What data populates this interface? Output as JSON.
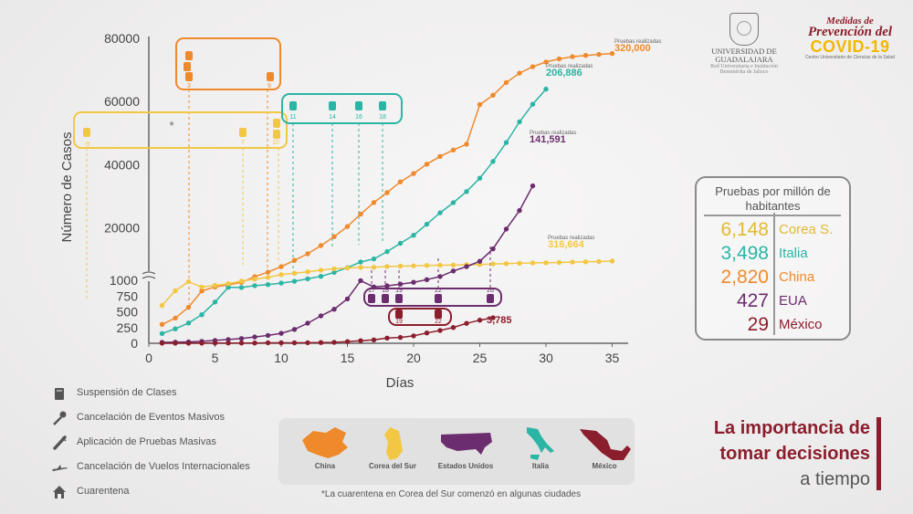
{
  "chart_data": {
    "type": "line",
    "xlabel": "Días",
    "ylabel": "Número de Casos",
    "xlim": [
      0,
      35
    ],
    "x_ticks": [
      "0",
      "5",
      "10",
      "15",
      "20",
      "25",
      "30",
      "35"
    ],
    "y_ticks_upper": [
      "20000",
      "40000",
      "60000",
      "80000"
    ],
    "y_ticks_lower": [
      "0",
      "250",
      "500",
      "750",
      "1000"
    ],
    "y_scale": "broken: 0–1000 linear lower panel, ~6000–80000 linear upper panel",
    "grid": false,
    "series": [
      {
        "name": "China",
        "color": "#ee8a2c",
        "label": "320,000",
        "sublabel": "Pruebas realizadas",
        "x": [
          1,
          2,
          3,
          4,
          5,
          6,
          7,
          8,
          9,
          10,
          11,
          12,
          13,
          14,
          15,
          16,
          17,
          18,
          19,
          20,
          21,
          22,
          23,
          24,
          25,
          26,
          27,
          28,
          29,
          30,
          31,
          32,
          33,
          34,
          35
        ],
        "y": [
          300,
          400,
          571,
          830,
          1287,
          1975,
          2744,
          4515,
          5974,
          7711,
          9692,
          11791,
          14380,
          17205,
          20438,
          24324,
          28018,
          31161,
          34546,
          37198,
          40171,
          42638,
          44653,
          46472,
          59000,
          62000,
          66000,
          69000,
          71000,
          72500,
          73500,
          74200,
          74600,
          74900,
          75200
        ]
      },
      {
        "name": "Italia",
        "color": "#2bb5a4",
        "label": "206,886",
        "sublabel": "Pruebas realizadas",
        "x": [
          1,
          2,
          3,
          4,
          5,
          6,
          7,
          8,
          9,
          10,
          11,
          12,
          13,
          14,
          15,
          16,
          17,
          18,
          19,
          20,
          21,
          22,
          23,
          24,
          25,
          26,
          27,
          28,
          29,
          30
        ],
        "y": [
          155,
          229,
          322,
          453,
          655,
          888,
          1128,
          1694,
          2036,
          2502,
          3089,
          3858,
          4636,
          5883,
          7375,
          9172,
          10149,
          12462,
          15113,
          17660,
          21157,
          24747,
          27980,
          31506,
          35713,
          41035,
          47021,
          53578,
          59138,
          63927
        ]
      },
      {
        "name": "Corea del Sur",
        "color": "#f2c744",
        "label": "316,664",
        "sublabel": "Pruebas realizadas",
        "x": [
          1,
          2,
          3,
          4,
          5,
          6,
          7,
          8,
          9,
          10,
          11,
          12,
          13,
          14,
          15,
          16,
          17,
          18,
          19,
          20,
          21,
          22,
          23,
          24,
          25,
          26,
          27,
          28,
          29,
          30,
          31,
          32,
          33,
          34,
          35
        ],
        "y": [
          602,
          833,
          977,
          1261,
          1766,
          2337,
          3150,
          3736,
          4335,
          5186,
          5621,
          6088,
          6593,
          7041,
          7313,
          7478,
          7513,
          7755,
          7869,
          7979,
          8086,
          8162,
          8236,
          8320,
          8413,
          8565,
          8652,
          8799,
          8897,
          8961,
          9037,
          9137,
          9241,
          9332,
          9478
        ]
      },
      {
        "name": "EUA",
        "color": "#6b2d6e",
        "label": "141,591",
        "sublabel": "Pruebas realizadas",
        "x": [
          1,
          2,
          3,
          4,
          5,
          6,
          7,
          8,
          9,
          10,
          11,
          12,
          13,
          14,
          15,
          16,
          17,
          18,
          19,
          20,
          21,
          22,
          23,
          24,
          25,
          26,
          27,
          28,
          29
        ],
        "y": [
          15,
          18,
          22,
          30,
          45,
          60,
          75,
          100,
          124,
          158,
          221,
          319,
          435,
          541,
          704,
          994,
          1301,
          1630,
          2183,
          2770,
          3613,
          4596,
          6344,
          7738,
          9415,
          13355,
          19608,
          25489,
          33276
        ]
      },
      {
        "name": "México",
        "color": "#8b1e2d",
        "label": "3,785",
        "sublabel": "",
        "x": [
          1,
          2,
          3,
          4,
          5,
          6,
          7,
          8,
          9,
          10,
          11,
          12,
          13,
          14,
          15,
          16,
          17,
          18,
          19,
          20,
          21,
          22,
          23,
          24,
          25,
          26
        ],
        "y": [
          1,
          1,
          2,
          3,
          4,
          4,
          5,
          5,
          7,
          7,
          7,
          8,
          12,
          15,
          26,
          41,
          53,
          82,
          93,
          118,
          164,
          203,
          251,
          316,
          367,
          405
        ]
      }
    ],
    "annotations": [
      {
        "group": "China",
        "color": "#ee8a2c",
        "days": [
          "3",
          "9"
        ]
      },
      {
        "group": "Corea del Sur",
        "color": "#f2c744",
        "days": [
          "-9",
          "7",
          "10"
        ],
        "asterisk": "*"
      },
      {
        "group": "Italia",
        "color": "#2bb5a4",
        "days": [
          "11",
          "14",
          "16",
          "18"
        ]
      },
      {
        "group": "EUA",
        "color": "#6b2d6e",
        "days": [
          "17",
          "18",
          "19",
          "22",
          "26"
        ]
      },
      {
        "group": "México",
        "color": "#8b1e2d",
        "days": [
          "19",
          "22"
        ]
      }
    ]
  },
  "logos": {
    "udg": {
      "line1": "UNIVERSIDAD DE",
      "line2": "GUADALAJARA",
      "line3": "Red Universitaria e Institución Benemérita de Jalisco"
    },
    "covid": {
      "line1": "Medidas de",
      "line2": "Prevención del",
      "line3": "COVID-19",
      "line4": "Centro Universitario de Ciencias de la Salud"
    }
  },
  "tests_table": {
    "header": "Pruebas por millón de habitantes",
    "rows": [
      {
        "value": "6,148",
        "country": "Corea S.",
        "color": "#e3b92f"
      },
      {
        "value": "3,498",
        "country": "Italia",
        "color": "#2bb5a4"
      },
      {
        "value": "2,820",
        "country": "China",
        "color": "#ee8a2c"
      },
      {
        "value": "427",
        "country": "EUA",
        "color": "#6b2d6e"
      },
      {
        "value": "29",
        "country": "México",
        "color": "#8b1e2d"
      }
    ]
  },
  "legend": [
    {
      "icon": "book-icon",
      "label": "Suspensión de Clases"
    },
    {
      "icon": "microphone-icon",
      "label": "Cancelación de Eventos Masivos"
    },
    {
      "icon": "test-tube-icon",
      "label": "Aplicación de Pruebas Masivas"
    },
    {
      "icon": "airplane-icon",
      "label": "Cancelación de Vuelos Internacionales"
    },
    {
      "icon": "house-icon",
      "label": "Cuarentena"
    }
  ],
  "maps": [
    {
      "label": "China",
      "color": "#ee8a2c"
    },
    {
      "label": "Corea del Sur",
      "color": "#f2c744"
    },
    {
      "label": "Estados Unidos",
      "color": "#6b2d6e"
    },
    {
      "label": "Italia",
      "color": "#2bb5a4"
    },
    {
      "label": "México",
      "color": "#8b1e2d"
    }
  ],
  "footnote": "*La cuarentena en Corea del Sur comenzó en algunas ciudades",
  "title": {
    "line1": "La importancia de",
    "line2": "tomar decisiones",
    "line3": "a tiempo"
  }
}
